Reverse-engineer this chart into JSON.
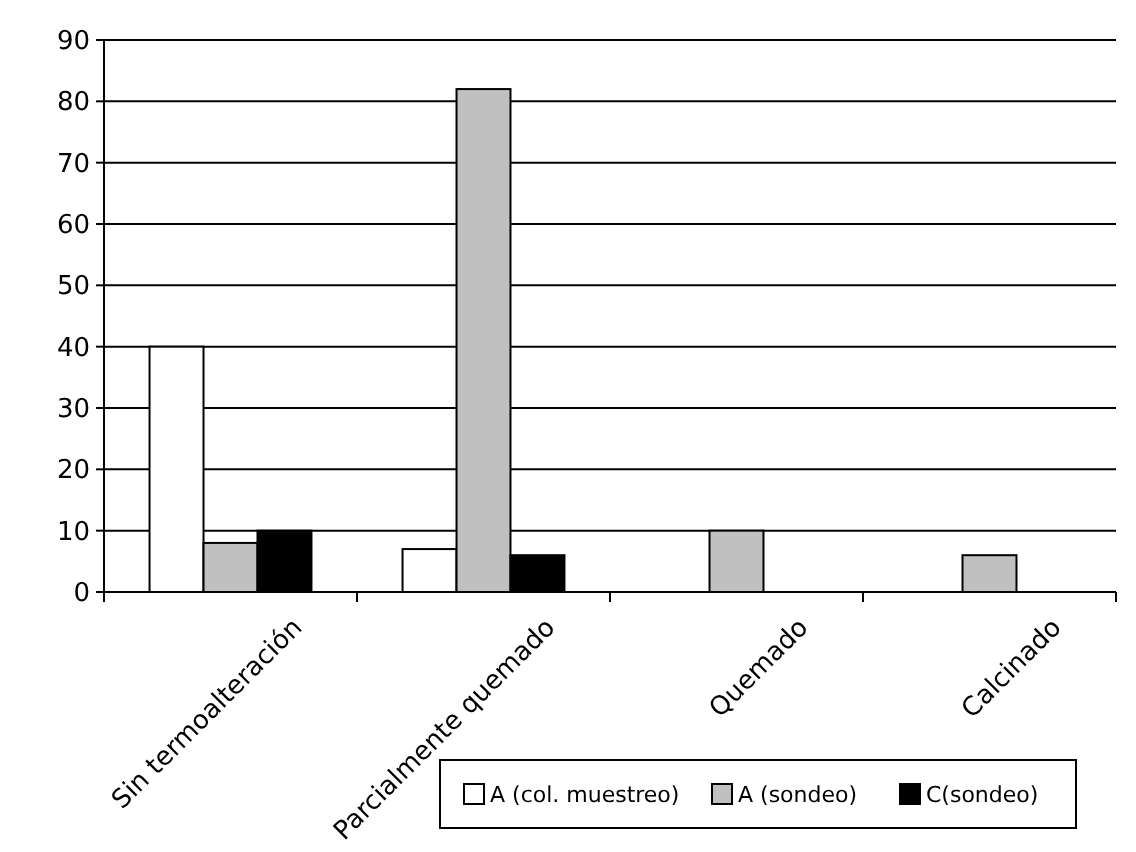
{
  "chart_data": {
    "type": "bar",
    "categories": [
      "Sin termoalteración",
      "Parcialmente quemado",
      "Quemado",
      "Calcinado"
    ],
    "series": [
      {
        "name": "A (col. muestreo)",
        "color": "#ffffff",
        "values": [
          40,
          7,
          null,
          null
        ]
      },
      {
        "name": "A (sondeo)",
        "color": "#c0c0c0",
        "values": [
          8,
          82,
          10,
          6
        ]
      },
      {
        "name": "C(sondeo)",
        "color": "#000000",
        "values": [
          10,
          6,
          null,
          null
        ]
      }
    ],
    "ylim": [
      0,
      90
    ],
    "yticks": [
      0,
      10,
      20,
      30,
      40,
      50,
      60,
      70,
      80,
      90
    ],
    "grid": "y",
    "legend": "bottom right"
  }
}
